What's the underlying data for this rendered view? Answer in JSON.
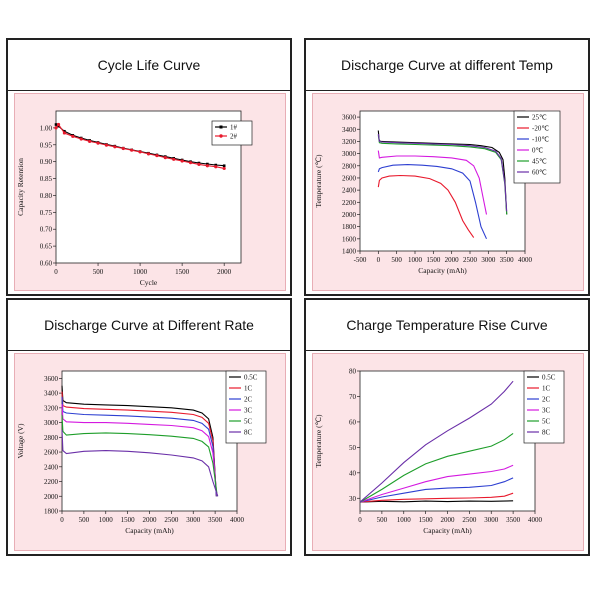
{
  "panels": [
    {
      "title": "Cycle Life Curve"
    },
    {
      "title": "Discharge Curve at different Temp"
    },
    {
      "title": "Discharge Curve at Different Rate"
    },
    {
      "title": "Charge Temperature Rise Curve"
    }
  ],
  "chart_data": [
    {
      "type": "line",
      "title": "Cycle Life Curve",
      "xlabel": "Cycle",
      "ylabel": "Capacity Retention",
      "xlim": [
        0,
        2200
      ],
      "ylim": [
        0.6,
        1.05
      ],
      "xticks": [
        0,
        500,
        1000,
        1500,
        2000
      ],
      "yticks": [
        0.6,
        0.65,
        0.7,
        0.75,
        0.8,
        0.85,
        0.9,
        0.95,
        1.0
      ],
      "series": [
        {
          "name": "1#",
          "color": "#000000",
          "marker": "square",
          "x": [
            0,
            30,
            100,
            200,
            300,
            400,
            500,
            600,
            700,
            800,
            900,
            1000,
            1100,
            1200,
            1300,
            1400,
            1500,
            1600,
            1700,
            1800,
            1900,
            2000
          ],
          "y": [
            1.01,
            1.005,
            0.99,
            0.978,
            0.97,
            0.963,
            0.957,
            0.951,
            0.946,
            0.94,
            0.935,
            0.93,
            0.925,
            0.92,
            0.915,
            0.91,
            0.905,
            0.9,
            0.896,
            0.893,
            0.89,
            0.888
          ]
        },
        {
          "name": "2#",
          "color": "#e8192c",
          "marker": "circle",
          "x": [
            0,
            30,
            100,
            200,
            300,
            400,
            500,
            600,
            700,
            800,
            900,
            1000,
            1100,
            1200,
            1300,
            1400,
            1500,
            1600,
            1700,
            1800,
            1900,
            2000
          ],
          "y": [
            1.0,
            1.01,
            0.985,
            0.975,
            0.967,
            0.96,
            0.955,
            0.949,
            0.944,
            0.939,
            0.934,
            0.929,
            0.923,
            0.918,
            0.912,
            0.907,
            0.902,
            0.897,
            0.892,
            0.888,
            0.885,
            0.88
          ]
        }
      ],
      "legend": "top-right"
    },
    {
      "type": "line",
      "title": "Discharge Curve at different Temp",
      "xlabel": "Capacity (mAh)",
      "ylabel": "Temperature (℃)",
      "xlim": [
        -500,
        4000
      ],
      "ylim": [
        1400,
        3700
      ],
      "xticks": [
        -500,
        0,
        500,
        1000,
        1500,
        2000,
        2500,
        3000,
        3500,
        4000
      ],
      "yticks": [
        1400,
        1600,
        1800,
        2000,
        2200,
        2400,
        2600,
        2800,
        3000,
        3200,
        3400,
        3600
      ],
      "series": [
        {
          "name": "25℃",
          "color": "#000000",
          "x": [
            0,
            20,
            50,
            500,
            1000,
            1500,
            2000,
            2500,
            2800,
            3100,
            3300,
            3400,
            3450,
            3500
          ],
          "y": [
            3380,
            3230,
            3200,
            3190,
            3180,
            3170,
            3160,
            3150,
            3130,
            3100,
            3020,
            2900,
            2600,
            2000
          ]
        },
        {
          "name": "-20℃",
          "color": "#e8192c",
          "x": [
            0,
            30,
            100,
            300,
            600,
            1000,
            1400,
            1700,
            1900,
            2100,
            2300,
            2450,
            2600
          ],
          "y": [
            2450,
            2560,
            2600,
            2630,
            2640,
            2630,
            2590,
            2510,
            2400,
            2200,
            1900,
            1750,
            1620
          ]
        },
        {
          "name": "-10℃",
          "color": "#2d3fd1",
          "x": [
            0,
            30,
            100,
            400,
            800,
            1200,
            1600,
            2000,
            2300,
            2500,
            2650,
            2800,
            2950
          ],
          "y": [
            2700,
            2750,
            2770,
            2810,
            2820,
            2810,
            2790,
            2750,
            2680,
            2550,
            2200,
            1800,
            1600
          ]
        },
        {
          "name": "0℃",
          "color": "#d419e0",
          "x": [
            0,
            30,
            100,
            500,
            1000,
            1500,
            2000,
            2400,
            2600,
            2750,
            2850,
            2950
          ],
          "y": [
            3050,
            2930,
            2940,
            2960,
            2960,
            2950,
            2930,
            2890,
            2800,
            2600,
            2300,
            2000
          ]
        },
        {
          "name": "45℃",
          "color": "#1e9e2a",
          "x": [
            0,
            30,
            100,
            500,
            1000,
            1500,
            2000,
            2500,
            2900,
            3200,
            3350,
            3450,
            3500
          ],
          "y": [
            3300,
            3180,
            3170,
            3160,
            3150,
            3140,
            3130,
            3110,
            3080,
            3020,
            2900,
            2500,
            2000
          ]
        },
        {
          "name": "60℃",
          "color": "#6a2fa8",
          "x": [
            0,
            30,
            100,
            500,
            1000,
            1500,
            2000,
            2500,
            2900,
            3200,
            3350,
            3450,
            3500
          ],
          "y": [
            3320,
            3200,
            3190,
            3180,
            3170,
            3160,
            3150,
            3130,
            3100,
            3040,
            2920,
            2520,
            2050
          ]
        }
      ],
      "legend": "top-right"
    },
    {
      "type": "line",
      "title": "Discharge Curve at Different Rate",
      "xlabel": "Capacity (mAh)",
      "ylabel": "Voltage (V)",
      "xlim": [
        0,
        4000
      ],
      "ylim": [
        1800,
        3700
      ],
      "xticks": [
        0,
        500,
        1000,
        1500,
        2000,
        2500,
        3000,
        3500,
        4000
      ],
      "yticks": [
        1800,
        2000,
        2200,
        2400,
        2600,
        2800,
        3000,
        3200,
        3400,
        3600
      ],
      "series": [
        {
          "name": "0.5C",
          "color": "#000000",
          "x": [
            0,
            20,
            100,
            500,
            1000,
            1500,
            2000,
            2500,
            3000,
            3200,
            3350,
            3450,
            3530
          ],
          "y": [
            3500,
            3300,
            3270,
            3250,
            3240,
            3230,
            3215,
            3200,
            3170,
            3130,
            3050,
            2800,
            2000
          ]
        },
        {
          "name": "1C",
          "color": "#e8192c",
          "x": [
            0,
            20,
            100,
            500,
            1000,
            1500,
            2000,
            2500,
            3000,
            3200,
            3350,
            3450,
            3530
          ],
          "y": [
            3420,
            3230,
            3210,
            3190,
            3180,
            3170,
            3155,
            3140,
            3110,
            3070,
            2990,
            2750,
            2000
          ]
        },
        {
          "name": "2C",
          "color": "#2d3fd1",
          "x": [
            0,
            20,
            100,
            500,
            1000,
            1500,
            2000,
            2500,
            3000,
            3200,
            3350,
            3450,
            3530
          ],
          "y": [
            3350,
            3150,
            3130,
            3110,
            3100,
            3090,
            3075,
            3060,
            3030,
            2990,
            2910,
            2680,
            2000
          ]
        },
        {
          "name": "3C",
          "color": "#d419e0",
          "x": [
            0,
            20,
            100,
            500,
            1000,
            1500,
            2000,
            2500,
            3000,
            3200,
            3350,
            3450,
            3540
          ],
          "y": [
            3250,
            3050,
            3010,
            3000,
            3000,
            2990,
            2975,
            2960,
            2930,
            2890,
            2810,
            2590,
            2000
          ]
        },
        {
          "name": "5C",
          "color": "#1e9e2a",
          "x": [
            0,
            20,
            100,
            500,
            1000,
            1500,
            2000,
            2500,
            3000,
            3200,
            3350,
            3450,
            3550
          ],
          "y": [
            3100,
            2880,
            2830,
            2850,
            2860,
            2850,
            2835,
            2815,
            2785,
            2745,
            2670,
            2450,
            2000
          ]
        },
        {
          "name": "8C",
          "color": "#6a2fa8",
          "x": [
            0,
            20,
            100,
            500,
            1000,
            1500,
            2000,
            2500,
            3000,
            3200,
            3350,
            3450,
            3560
          ],
          "y": [
            2900,
            2620,
            2580,
            2610,
            2620,
            2610,
            2590,
            2560,
            2520,
            2480,
            2400,
            2200,
            2000
          ]
        }
      ],
      "legend": "top-right"
    },
    {
      "type": "line",
      "title": "Charge Temperature Rise Curve",
      "xlabel": "Capacity (mAh)",
      "ylabel": "Temperature (℃)",
      "xlim": [
        0,
        4000
      ],
      "ylim": [
        25,
        80
      ],
      "xticks": [
        0,
        500,
        1000,
        1500,
        2000,
        2500,
        3000,
        3500,
        4000
      ],
      "yticks": [
        30,
        40,
        50,
        60,
        70,
        80
      ],
      "series": [
        {
          "name": "0.5C",
          "color": "#000000",
          "x": [
            0,
            500,
            1000,
            1500,
            2000,
            2500,
            3000,
            3500
          ],
          "y": [
            28.5,
            28.8,
            28.6,
            28.9,
            28.7,
            28.9,
            28.8,
            29.0
          ]
        },
        {
          "name": "1C",
          "color": "#e8192c",
          "x": [
            0,
            500,
            1000,
            1500,
            2000,
            2500,
            3000,
            3300,
            3500
          ],
          "y": [
            28.5,
            29.2,
            29.6,
            29.8,
            30.0,
            30.1,
            30.4,
            30.8,
            32.0
          ]
        },
        {
          "name": "2C",
          "color": "#2d3fd1",
          "x": [
            0,
            500,
            1000,
            1500,
            2000,
            2500,
            3000,
            3300,
            3500
          ],
          "y": [
            28.5,
            30.5,
            32.0,
            33.5,
            34.0,
            34.3,
            35.0,
            36.5,
            38.0
          ]
        },
        {
          "name": "3C",
          "color": "#d419e0",
          "x": [
            0,
            500,
            1000,
            1500,
            2000,
            2500,
            3000,
            3300,
            3500
          ],
          "y": [
            28.5,
            31.5,
            34.0,
            36.5,
            38.5,
            39.5,
            40.5,
            41.5,
            43.0
          ]
        },
        {
          "name": "5C",
          "color": "#1e9e2a",
          "x": [
            0,
            500,
            1000,
            1500,
            2000,
            2500,
            3000,
            3300,
            3500
          ],
          "y": [
            28.5,
            33.5,
            39.0,
            43.5,
            46.5,
            48.5,
            50.5,
            53.0,
            55.5
          ]
        },
        {
          "name": "8C",
          "color": "#6a2fa8",
          "x": [
            0,
            500,
            1000,
            1500,
            2000,
            2500,
            3000,
            3300,
            3500
          ],
          "y": [
            28.5,
            36.0,
            44.0,
            51.0,
            56.5,
            61.5,
            67.0,
            72.0,
            76.0
          ]
        }
      ],
      "legend": "top-right"
    }
  ]
}
